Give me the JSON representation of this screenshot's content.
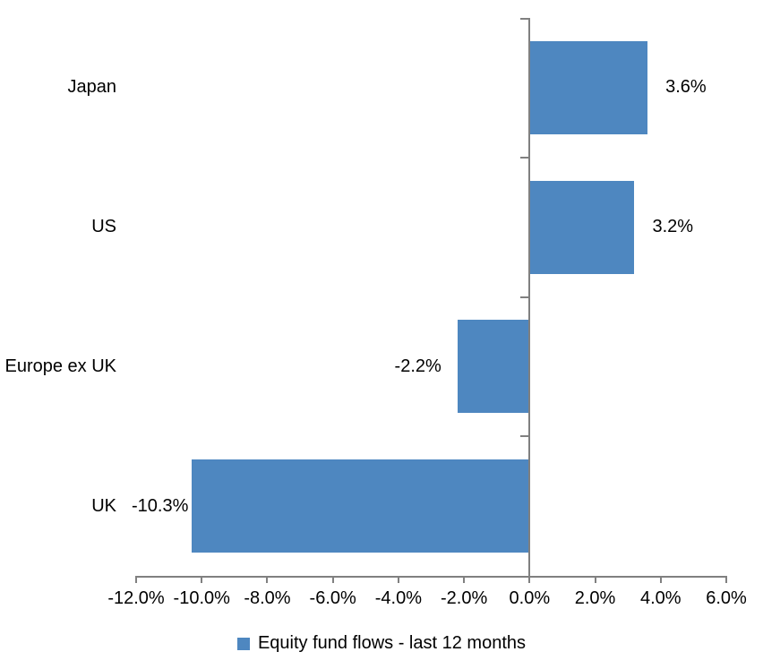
{
  "chart_data": {
    "type": "bar",
    "orientation": "horizontal",
    "title": "",
    "categories": [
      "Japan",
      "US",
      "Europe ex UK",
      "UK"
    ],
    "series": [
      {
        "name": "Equity fund flows - last 12 months",
        "values": [
          3.6,
          3.2,
          -2.2,
          -10.3
        ],
        "value_labels": [
          "3.6%",
          "3.2%",
          "-2.2%",
          "-10.3%"
        ],
        "color": "#4E87C0"
      }
    ],
    "xlim": [
      -12,
      6
    ],
    "x_tick_step": 2,
    "x_tick_labels": [
      "-12.0%",
      "-10.0%",
      "-8.0%",
      "-6.0%",
      "-4.0%",
      "-2.0%",
      "0.0%",
      "2.0%",
      "4.0%",
      "6.0%"
    ],
    "grid": false,
    "legend_position": "bottom-center",
    "colors": {
      "bar": "#4E87C0",
      "axis": "#808080",
      "text": "#000000",
      "background": "#FFFFFF"
    }
  }
}
